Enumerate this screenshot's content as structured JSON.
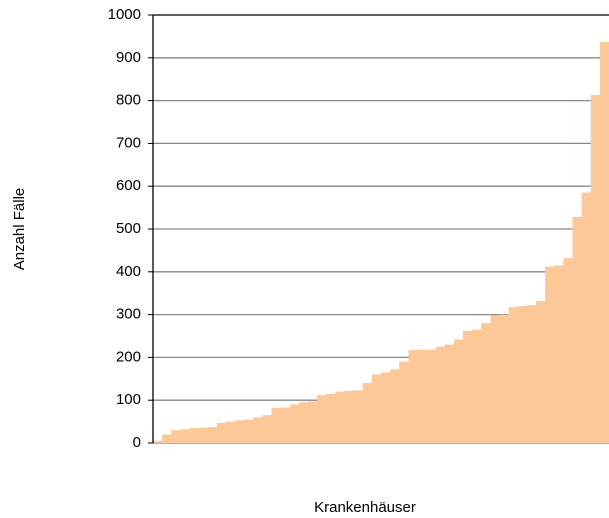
{
  "chart_data": {
    "type": "bar",
    "y_label": "Anzahl Fälle",
    "x_label": "Krankenhäuser",
    "categories": [
      null,
      null,
      null,
      null,
      null,
      null,
      null,
      null,
      null,
      null,
      null,
      null,
      null,
      null,
      null,
      null,
      null,
      null,
      null,
      null,
      null,
      null,
      null,
      null,
      null,
      null,
      null,
      null,
      null,
      null,
      null,
      null,
      null,
      null,
      null,
      null,
      null,
      null,
      null,
      null,
      null,
      null,
      null,
      null,
      null,
      null,
      null,
      null,
      null,
      null
    ],
    "values": [
      5,
      20,
      30,
      32,
      35,
      36,
      37,
      47,
      50,
      53,
      55,
      60,
      65,
      82,
      83,
      90,
      95,
      97,
      112,
      115,
      120,
      122,
      123,
      140,
      160,
      165,
      172,
      190,
      217,
      218,
      218,
      225,
      230,
      242,
      262,
      265,
      280,
      298,
      300,
      318,
      320,
      322,
      332,
      412,
      415,
      432,
      528,
      585,
      813,
      937
    ],
    "color": "#fcc898",
    "ylim": [
      0,
      1000
    ],
    "yticks": [
      0,
      100,
      200,
      300,
      400,
      500,
      600,
      700,
      800,
      900,
      1000
    ],
    "grid": true
  }
}
